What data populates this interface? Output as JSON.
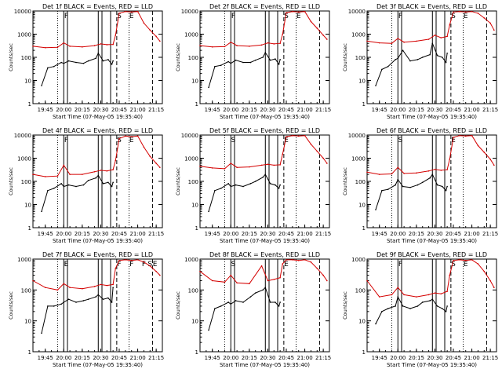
{
  "figure": {
    "ylabel": "Counts/sec",
    "xlabel": "Start Time (07-May-05 19:35:40)",
    "x_ticks": [
      "19:45",
      "20:00",
      "20:15",
      "20:30",
      "20:45",
      "21:00",
      "21:15"
    ],
    "y_ticks": [
      "1",
      "10",
      "100",
      "1000",
      "10000"
    ],
    "colors": {
      "events": "#000000",
      "lld": "#d40000",
      "axes": "#000000",
      "background": "#ffffff"
    }
  },
  "chart_data": [
    {
      "type": "line",
      "title": "Det 1f BLACK = Events, RED = LLD",
      "xlim": [
        "19:35",
        "21:20"
      ],
      "ylim": [
        1,
        10000
      ],
      "yscale": "log",
      "marker_letters": [
        "F",
        "S",
        "E"
      ],
      "series": [
        {
          "name": "Events",
          "color": "#000000",
          "x": [
            "19:42",
            "19:47",
            "19:52",
            "19:58",
            "20:00",
            "20:04",
            "20:10",
            "20:16",
            "20:20",
            "20:26",
            "20:28",
            "20:32",
            "20:36",
            "20:39",
            "20:40"
          ],
          "y": [
            6,
            35,
            40,
            60,
            55,
            70,
            60,
            55,
            70,
            90,
            150,
            70,
            80,
            50,
            70
          ]
        },
        {
          "name": "LLD",
          "color": "#d40000",
          "x": [
            "19:35",
            "19:45",
            "19:55",
            "20:00",
            "20:05",
            "20:15",
            "20:25",
            "20:30",
            "20:35",
            "20:40",
            "20:42",
            "20:45",
            "20:50",
            "20:55",
            "21:00",
            "21:05",
            "21:10",
            "21:15",
            "21:18"
          ],
          "y": [
            300,
            260,
            270,
            420,
            300,
            280,
            320,
            380,
            350,
            360,
            900,
            8000,
            9500,
            9000,
            9500,
            3000,
            1500,
            800,
            500
          ]
        }
      ]
    },
    {
      "type": "line",
      "title": "Det 2f BLACK = Events, RED = LLD",
      "xlim": [
        "19:35",
        "21:20"
      ],
      "ylim": [
        1,
        10000
      ],
      "yscale": "log",
      "marker_letters": [
        "F",
        "S",
        "E"
      ],
      "series": [
        {
          "name": "Events",
          "color": "#000000",
          "x": [
            "19:42",
            "19:47",
            "19:52",
            "19:58",
            "20:00",
            "20:04",
            "20:10",
            "20:16",
            "20:20",
            "20:26",
            "20:28",
            "20:32",
            "20:36",
            "20:39",
            "20:40"
          ],
          "y": [
            5,
            40,
            45,
            65,
            55,
            75,
            60,
            60,
            75,
            100,
            160,
            75,
            85,
            50,
            80
          ]
        },
        {
          "name": "LLD",
          "color": "#d40000",
          "x": [
            "19:35",
            "19:45",
            "19:55",
            "20:00",
            "20:05",
            "20:15",
            "20:25",
            "20:30",
            "20:35",
            "20:40",
            "20:42",
            "20:45",
            "20:50",
            "20:55",
            "21:00",
            "21:05",
            "21:10",
            "21:15",
            "21:18"
          ],
          "y": [
            320,
            280,
            290,
            450,
            320,
            300,
            340,
            420,
            380,
            400,
            1000,
            8500,
            9500,
            9000,
            9500,
            3500,
            1800,
            900,
            600
          ]
        }
      ]
    },
    {
      "type": "line",
      "title": "Det 3f BLACK = Events, RED = LLD",
      "xlim": [
        "19:35",
        "21:20"
      ],
      "ylim": [
        1,
        10000
      ],
      "yscale": "log",
      "marker_letters": [
        "F",
        "S",
        "E"
      ],
      "series": [
        {
          "name": "Events",
          "color": "#000000",
          "x": [
            "19:42",
            "19:47",
            "19:52",
            "19:58",
            "20:00",
            "20:04",
            "20:10",
            "20:16",
            "20:20",
            "20:26",
            "20:28",
            "20:32",
            "20:36",
            "20:39",
            "20:40"
          ],
          "y": [
            6,
            30,
            40,
            80,
            90,
            200,
            70,
            80,
            100,
            130,
            400,
            120,
            100,
            60,
            150
          ]
        },
        {
          "name": "LLD",
          "color": "#d40000",
          "x": [
            "19:35",
            "19:45",
            "19:55",
            "20:00",
            "20:05",
            "20:15",
            "20:25",
            "20:30",
            "20:35",
            "20:40",
            "20:42",
            "20:45",
            "20:50",
            "20:55",
            "21:00",
            "21:05",
            "21:10",
            "21:15",
            "21:18"
          ],
          "y": [
            500,
            420,
            400,
            650,
            450,
            500,
            600,
            900,
            700,
            800,
            2500,
            9000,
            9500,
            9000,
            9500,
            8000,
            5000,
            3000,
            1500
          ]
        }
      ]
    },
    {
      "type": "line",
      "title": "Det 4f BLACK = Events, RED = LLD",
      "xlim": [
        "19:35",
        "21:20"
      ],
      "ylim": [
        1,
        10000
      ],
      "yscale": "log",
      "marker_letters": [
        "F",
        "S",
        "E"
      ],
      "series": [
        {
          "name": "Events",
          "color": "#000000",
          "x": [
            "19:42",
            "19:47",
            "19:52",
            "19:58",
            "20:00",
            "20:04",
            "20:10",
            "20:16",
            "20:20",
            "20:26",
            "20:28",
            "20:32",
            "20:36",
            "20:39",
            "20:40"
          ],
          "y": [
            5,
            40,
            50,
            80,
            60,
            70,
            60,
            70,
            110,
            140,
            180,
            80,
            90,
            60,
            90
          ]
        },
        {
          "name": "LLD",
          "color": "#d40000",
          "x": [
            "19:35",
            "19:45",
            "19:55",
            "20:00",
            "20:05",
            "20:15",
            "20:25",
            "20:30",
            "20:35",
            "20:40",
            "20:42",
            "20:45",
            "20:50",
            "20:55",
            "21:00",
            "21:05",
            "21:10",
            "21:15",
            "21:18"
          ],
          "y": [
            200,
            160,
            170,
            500,
            200,
            200,
            260,
            300,
            280,
            320,
            800,
            7000,
            9000,
            8500,
            9000,
            3000,
            1200,
            600,
            400
          ]
        }
      ]
    },
    {
      "type": "line",
      "title": "Det 5f BLACK = Events, RED = LLD",
      "xlim": [
        "19:35",
        "21:20"
      ],
      "ylim": [
        1,
        10000
      ],
      "yscale": "log",
      "marker_letters": [
        "S",
        "E"
      ],
      "series": [
        {
          "name": "Events",
          "color": "#000000",
          "x": [
            "19:42",
            "19:47",
            "19:52",
            "19:58",
            "20:00",
            "20:04",
            "20:10",
            "20:16",
            "20:20",
            "20:26",
            "20:28",
            "20:32",
            "20:36",
            "20:39",
            "20:40"
          ],
          "y": [
            5,
            40,
            50,
            80,
            60,
            70,
            60,
            80,
            100,
            150,
            200,
            80,
            70,
            50,
            70
          ]
        },
        {
          "name": "LLD",
          "color": "#d40000",
          "x": [
            "19:35",
            "19:45",
            "19:55",
            "20:00",
            "20:05",
            "20:15",
            "20:25",
            "20:30",
            "20:35",
            "20:40",
            "20:42",
            "20:45",
            "20:50",
            "20:55",
            "21:00",
            "21:05",
            "21:10",
            "21:15",
            "21:18"
          ],
          "y": [
            450,
            380,
            350,
            600,
            400,
            420,
            500,
            550,
            500,
            520,
            1500,
            8500,
            9500,
            9000,
            9500,
            4000,
            2000,
            1000,
            600
          ]
        }
      ]
    },
    {
      "type": "line",
      "title": "Det 6f BLACK = Events, RED = LLD",
      "xlim": [
        "19:35",
        "21:20"
      ],
      "ylim": [
        1,
        10000
      ],
      "yscale": "log",
      "marker_letters": [
        "S",
        "E"
      ],
      "series": [
        {
          "name": "Events",
          "color": "#000000",
          "x": [
            "19:42",
            "19:47",
            "19:52",
            "19:58",
            "20:00",
            "20:04",
            "20:10",
            "20:16",
            "20:20",
            "20:26",
            "20:28",
            "20:32",
            "20:36",
            "20:39",
            "20:40"
          ],
          "y": [
            6,
            40,
            45,
            70,
            120,
            60,
            55,
            70,
            90,
            140,
            200,
            70,
            60,
            40,
            60
          ]
        },
        {
          "name": "LLD",
          "color": "#d40000",
          "x": [
            "19:35",
            "19:45",
            "19:55",
            "20:00",
            "20:05",
            "20:15",
            "20:25",
            "20:30",
            "20:35",
            "20:40",
            "20:42",
            "20:45",
            "20:50",
            "20:55",
            "21:00",
            "21:05",
            "21:10",
            "21:15",
            "21:18"
          ],
          "y": [
            250,
            200,
            210,
            400,
            220,
            230,
            280,
            330,
            300,
            320,
            900,
            8000,
            9500,
            9000,
            9500,
            3500,
            1800,
            900,
            500
          ]
        }
      ]
    },
    {
      "type": "line",
      "title": "Det 7f BLACK = Events, RED = LLD",
      "xlim": [
        "19:35",
        "21:20"
      ],
      "ylim": [
        1,
        1000
      ],
      "yscale": "log",
      "marker_letters": [
        "E",
        "F",
        "F",
        "F",
        "S",
        "E"
      ],
      "series": [
        {
          "name": "Events",
          "color": "#000000",
          "x": [
            "19:42",
            "19:47",
            "19:52",
            "19:58",
            "20:00",
            "20:04",
            "20:10",
            "20:16",
            "20:20",
            "20:26",
            "20:28",
            "20:32",
            "20:36",
            "20:39",
            "20:40"
          ],
          "y": [
            4,
            30,
            30,
            35,
            40,
            50,
            40,
            45,
            50,
            60,
            70,
            50,
            55,
            40,
            120
          ]
        },
        {
          "name": "LLD",
          "color": "#d40000",
          "x": [
            "19:35",
            "19:45",
            "19:55",
            "20:00",
            "20:05",
            "20:15",
            "20:25",
            "20:30",
            "20:35",
            "20:40",
            "20:42",
            "20:45",
            "20:50",
            "20:55",
            "21:00",
            "21:05",
            "21:10",
            "21:15",
            "21:18"
          ],
          "y": [
            200,
            120,
            100,
            160,
            120,
            110,
            130,
            150,
            140,
            150,
            500,
            900,
            950,
            900,
            950,
            800,
            600,
            400,
            300
          ]
        }
      ]
    },
    {
      "type": "line",
      "title": "Det 8f BLACK = Events, RED = LLD",
      "xlim": [
        "19:35",
        "21:20"
      ],
      "ylim": [
        1,
        1000
      ],
      "yscale": "log",
      "marker_letters": [
        "S",
        "E"
      ],
      "series": [
        {
          "name": "Events",
          "color": "#000000",
          "x": [
            "19:42",
            "19:47",
            "19:52",
            "19:58",
            "20:00",
            "20:04",
            "20:10",
            "20:16",
            "20:20",
            "20:26",
            "20:28",
            "20:32",
            "20:36",
            "20:39",
            "20:40"
          ],
          "y": [
            5,
            25,
            30,
            40,
            35,
            45,
            40,
            60,
            80,
            100,
            120,
            40,
            40,
            30,
            40
          ]
        },
        {
          "name": "LLD",
          "color": "#d40000",
          "x": [
            "19:35",
            "19:45",
            "19:55",
            "20:00",
            "20:05",
            "20:15",
            "20:25",
            "20:30",
            "20:35",
            "20:40",
            "20:42",
            "20:45",
            "20:50",
            "20:55",
            "21:00",
            "21:05",
            "21:10",
            "21:15",
            "21:18"
          ],
          "y": [
            400,
            200,
            180,
            300,
            170,
            160,
            600,
            200,
            220,
            250,
            700,
            950,
            950,
            900,
            950,
            800,
            500,
            300,
            200
          ]
        }
      ]
    },
    {
      "type": "line",
      "title": "Det 9f BLACK = Events, RED = LLD",
      "xlim": [
        "19:35",
        "21:20"
      ],
      "ylim": [
        1,
        1000
      ],
      "yscale": "log",
      "marker_letters": [
        "F",
        "S",
        "E"
      ],
      "series": [
        {
          "name": "Events",
          "color": "#000000",
          "x": [
            "19:42",
            "19:47",
            "19:52",
            "19:58",
            "20:00",
            "20:04",
            "20:10",
            "20:16",
            "20:20",
            "20:26",
            "20:28",
            "20:32",
            "20:36",
            "20:39",
            "20:40"
          ],
          "y": [
            8,
            20,
            25,
            30,
            60,
            30,
            25,
            30,
            40,
            45,
            50,
            30,
            25,
            20,
            30
          ]
        },
        {
          "name": "LLD",
          "color": "#d40000",
          "x": [
            "19:35",
            "19:45",
            "19:55",
            "20:00",
            "20:05",
            "20:15",
            "20:25",
            "20:30",
            "20:35",
            "20:40",
            "20:42",
            "20:45",
            "20:50",
            "20:55",
            "21:00",
            "21:05",
            "21:10",
            "21:15",
            "21:18"
          ],
          "y": [
            200,
            60,
            70,
            120,
            70,
            60,
            70,
            80,
            75,
            90,
            300,
            900,
            950,
            900,
            950,
            700,
            400,
            200,
            120
          ]
        }
      ]
    }
  ]
}
